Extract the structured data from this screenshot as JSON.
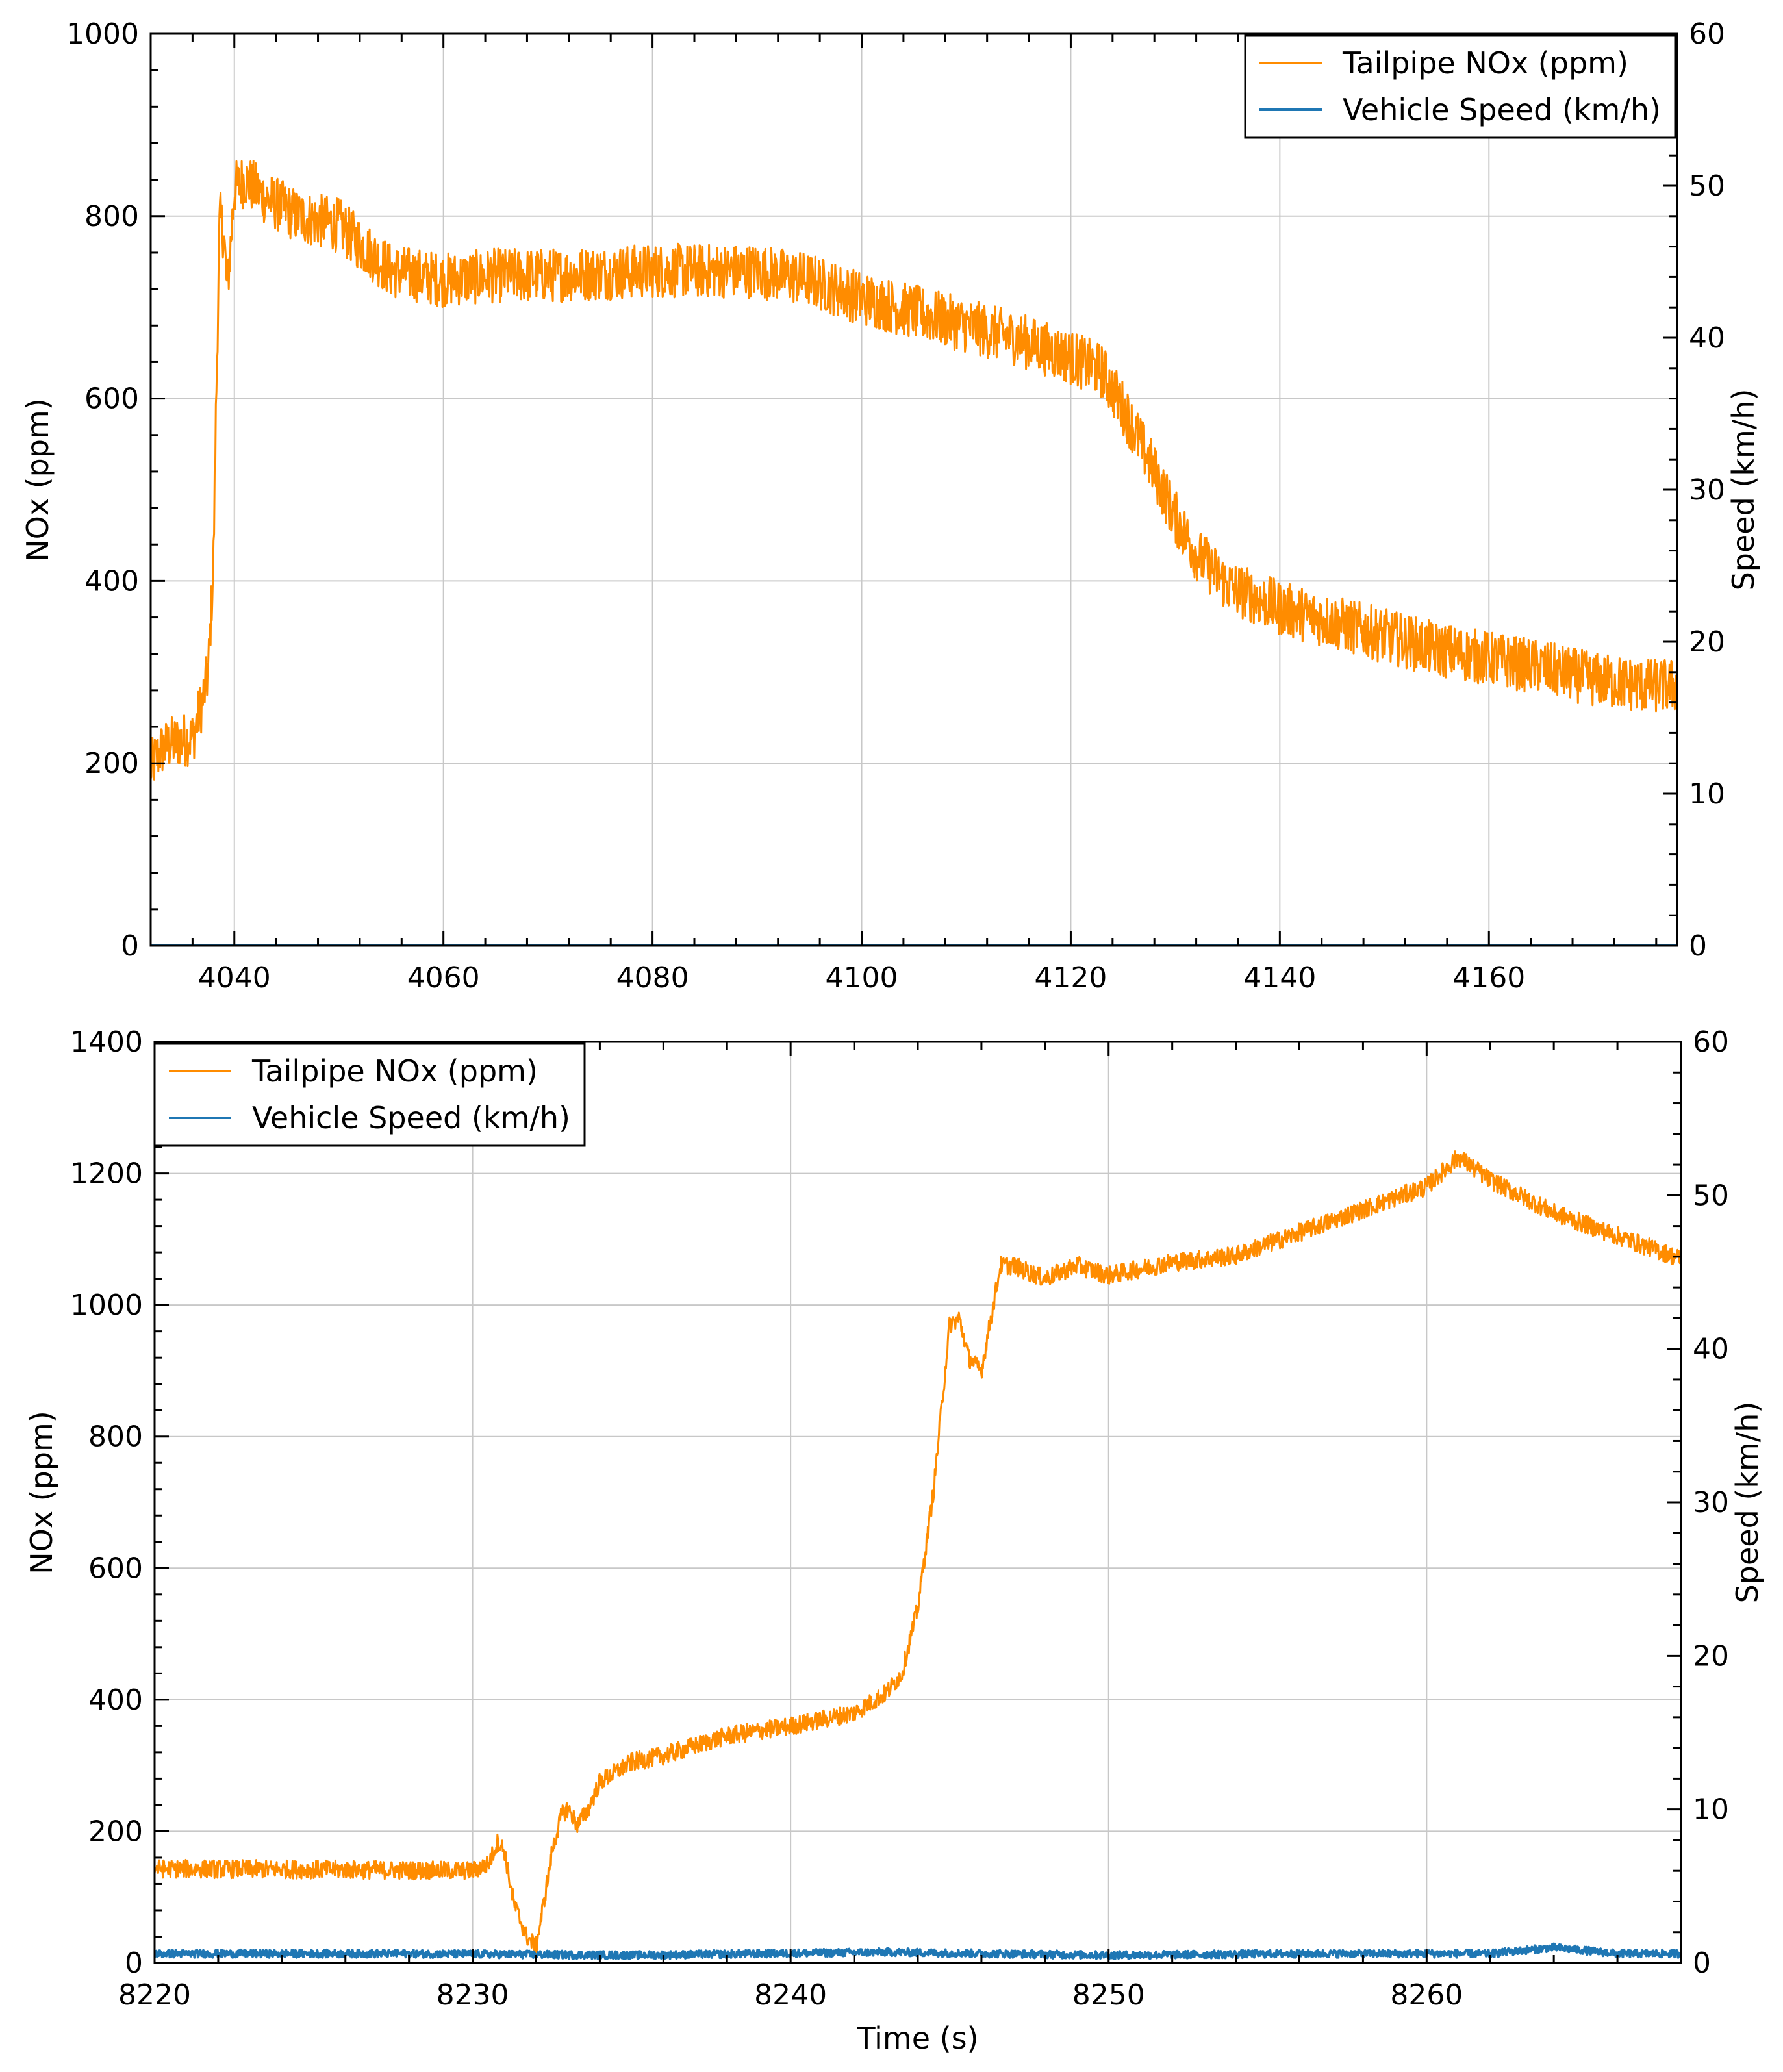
{
  "colors": {
    "nox": "#ff8c00",
    "speed": "#1f77b4",
    "grid": "#c8c8c8",
    "frame": "#000000"
  },
  "chart_data": [
    {
      "type": "line",
      "panel": "top",
      "title": "",
      "xlabel": "",
      "ylabel": "NOx (ppm)",
      "ylabel_right": "Speed (km/h)",
      "xlim": [
        4032,
        4178
      ],
      "ylim": [
        0,
        1000
      ],
      "ylim_right": [
        0,
        60
      ],
      "grid": true,
      "legend_position": "top-right",
      "x_ticks": [
        4040,
        4060,
        4080,
        4100,
        4120,
        4140,
        4160
      ],
      "y_ticks": [
        0,
        200,
        400,
        600,
        800,
        1000
      ],
      "y_ticks_right": [
        0,
        10,
        20,
        30,
        40,
        50,
        60
      ],
      "series": [
        {
          "name": "Tailpipe NOx (ppm)",
          "axis": "left",
          "color": "#ff8c00",
          "noise": 30,
          "x": [
            4032,
            4033,
            4034,
            4035,
            4036,
            4037,
            4037.5,
            4038,
            4038.3,
            4038.6,
            4039,
            4039.3,
            4039.6,
            4040,
            4041,
            4043,
            4046,
            4050,
            4052,
            4055,
            4060,
            4065,
            4070,
            4080,
            4090,
            4095,
            4100,
            4105,
            4110,
            4115,
            4120,
            4123,
            4125,
            4128,
            4130,
            4132,
            4135,
            4140,
            4145,
            4150,
            4155,
            4160,
            4165,
            4170,
            4175,
            4178
          ],
          "y": [
            195,
            215,
            222,
            225,
            228,
            270,
            300,
            420,
            620,
            800,
            780,
            720,
            760,
            830,
            840,
            820,
            800,
            790,
            770,
            740,
            730,
            735,
            735,
            740,
            740,
            730,
            710,
            695,
            680,
            665,
            645,
            630,
            590,
            520,
            470,
            430,
            395,
            370,
            355,
            340,
            325,
            315,
            305,
            292,
            285,
            285
          ]
        },
        {
          "name": "Vehicle Speed (km/h)",
          "axis": "right",
          "color": "#1f77b4",
          "noise": 0,
          "x": [
            4032,
            4178
          ],
          "y": [
            0,
            0
          ]
        }
      ]
    },
    {
      "type": "line",
      "panel": "bottom",
      "title": "",
      "xlabel": "Time (s)",
      "ylabel": "NOx (ppm)",
      "ylabel_right": "Speed (km/h)",
      "xlim": [
        8220,
        8268
      ],
      "ylim": [
        0,
        1400
      ],
      "ylim_right": [
        0,
        60
      ],
      "grid": true,
      "legend_position": "top-left",
      "x_ticks": [
        8220,
        8230,
        8240,
        8250,
        8260
      ],
      "y_ticks": [
        0,
        200,
        400,
        600,
        800,
        1000,
        1200,
        1400
      ],
      "y_ticks_right": [
        0,
        10,
        20,
        30,
        40,
        50,
        60
      ],
      "series": [
        {
          "name": "Tailpipe NOx (ppm)",
          "axis": "left",
          "color": "#ff8c00",
          "noise": 14,
          "x": [
            8220,
            8225,
            8230,
            8230.5,
            8230.8,
            8231,
            8231.3,
            8231.7,
            8232,
            8232.2,
            8232.5,
            8232.8,
            8233,
            8233.3,
            8233.6,
            8234,
            8235,
            8236,
            8237,
            8238,
            8240,
            8242,
            8243,
            8243.5,
            8244,
            8244.5,
            8245,
            8245.3,
            8245.6,
            8246,
            8246.3,
            8246.6,
            8247,
            8248,
            8249,
            8250,
            8252,
            8254,
            8256,
            8258,
            8260,
            8261,
            8262,
            8264,
            8266,
            8268
          ],
          "y": [
            143,
            142,
            140,
            150,
            185,
            170,
            90,
            40,
            25,
            80,
            170,
            225,
            235,
            210,
            230,
            275,
            305,
            315,
            330,
            345,
            360,
            380,
            410,
            440,
            540,
            720,
            970,
            980,
            920,
            900,
            980,
            1060,
            1060,
            1040,
            1060,
            1045,
            1065,
            1075,
            1110,
            1145,
            1180,
            1225,
            1190,
            1140,
            1105,
            1070
          ]
        },
        {
          "name": "Vehicle Speed (km/h)",
          "axis": "right",
          "color": "#1f77b4",
          "noise": 0.25,
          "x": [
            8220,
            8228,
            8235,
            8243,
            8250,
            8256,
            8262,
            8264,
            8266,
            8268
          ],
          "y": [
            0.6,
            0.6,
            0.5,
            0.7,
            0.5,
            0.6,
            0.6,
            1.0,
            0.6,
            0.6
          ]
        }
      ]
    }
  ]
}
